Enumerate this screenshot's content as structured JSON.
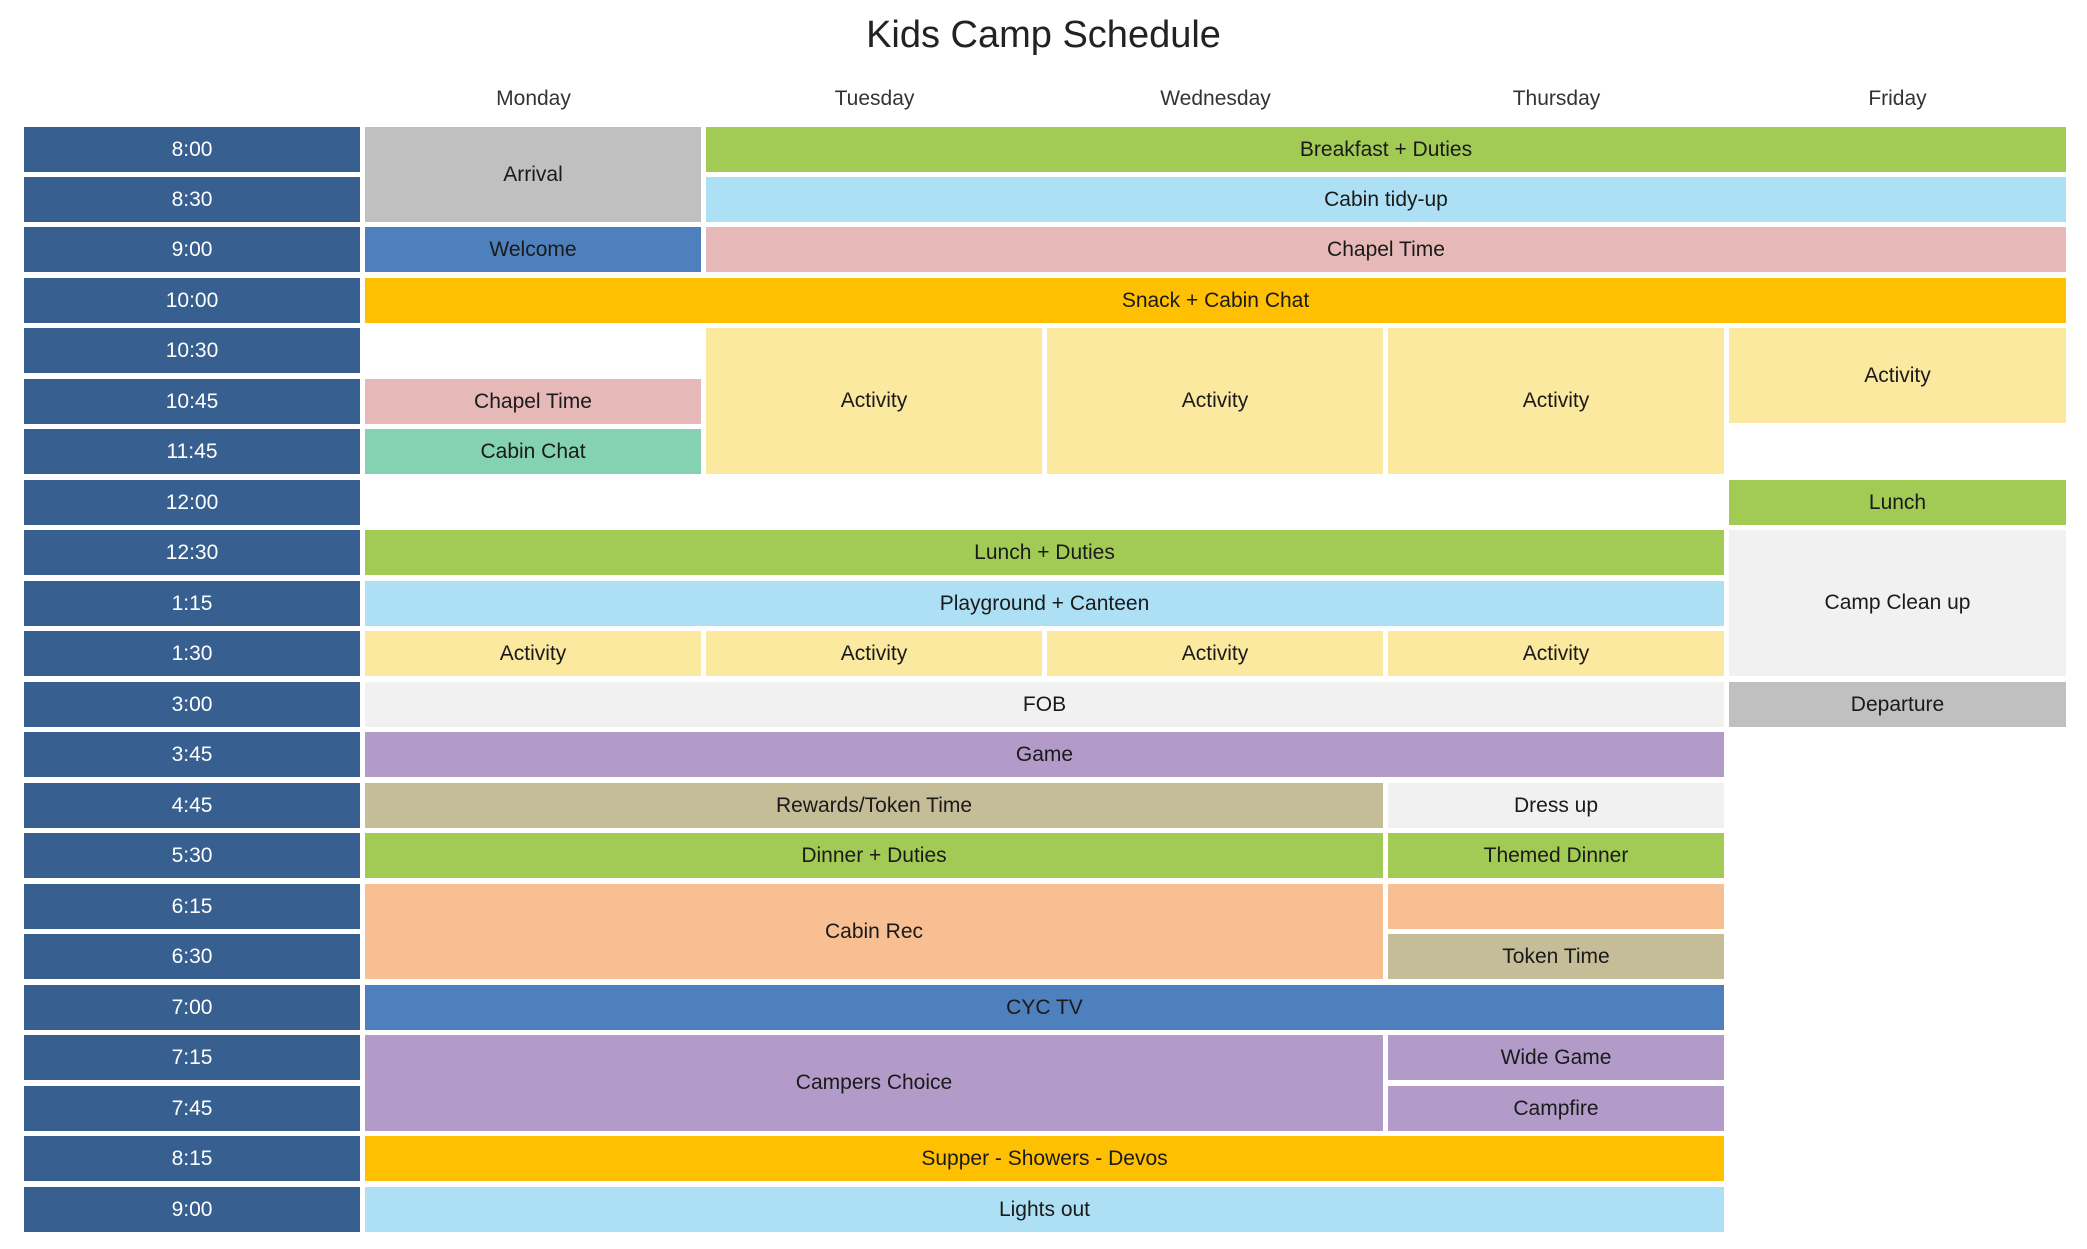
{
  "title": "Kids Camp Schedule",
  "days": [
    "Monday",
    "Tuesday",
    "Wednesday",
    "Thursday",
    "Friday"
  ],
  "times": [
    "8:00",
    "8:30",
    "9:00",
    "10:00",
    "10:30",
    "10:45",
    "11:45",
    "12:00",
    "12:30",
    "1:15",
    "1:30",
    "3:00",
    "3:45",
    "4:45",
    "5:30",
    "6:15",
    "6:30",
    "7:00",
    "7:15",
    "7:45",
    "8:15",
    "9:00"
  ],
  "events": {
    "arrival": "Arrival",
    "breakfast": "Breakfast  + Duties",
    "cabin_tidy": "Cabin tidy-up",
    "welcome": "Welcome",
    "chapel_time_week": "Chapel Time",
    "snack": "Snack + Cabin Chat",
    "chapel_time_mon": "Chapel Time",
    "cabin_chat": "Cabin Chat",
    "activity_tue_am": "Activity",
    "activity_wed_am": "Activity",
    "activity_thu_am": "Activity",
    "activity_fri_am": "Activity",
    "lunch_fri": "Lunch",
    "lunch_duties": "Lunch  + Duties",
    "camp_clean_up": "Camp Clean up",
    "playground": "Playground + Canteen",
    "activity_mon_pm": "Activity",
    "activity_tue_pm": "Activity",
    "activity_wed_pm": "Activity",
    "activity_thu_pm": "Activity",
    "fob": "FOB",
    "departure": "Departure",
    "game": "Game",
    "rewards": "Rewards/Token Time",
    "dress_up": "Dress up",
    "dinner_duties": "Dinner + Duties",
    "themed_dinner": "Themed Dinner",
    "cabin_rec": "Cabin Rec",
    "token_time": "Token Time",
    "cyc_tv": "CYC TV",
    "campers_choice": "Campers Choice",
    "wide_game": "Wide Game",
    "campfire": "Campfire",
    "supper": "Supper  - Showers - Devos",
    "lights_out": "Lights out"
  },
  "colors": {
    "time_column": "#375f8f",
    "gray": "#c0c0c0",
    "green": "#a2cb56",
    "sky": "#ade0f4",
    "pink": "#e6b9b8",
    "blue": "#4d80bc",
    "gold": "#fec000",
    "yellow": "#fae99e",
    "mint": "#84d2b1",
    "light": "#f1f1f1",
    "purple": "#b29bc8",
    "tan": "#c5bc98",
    "peach": "#f8bf92"
  }
}
